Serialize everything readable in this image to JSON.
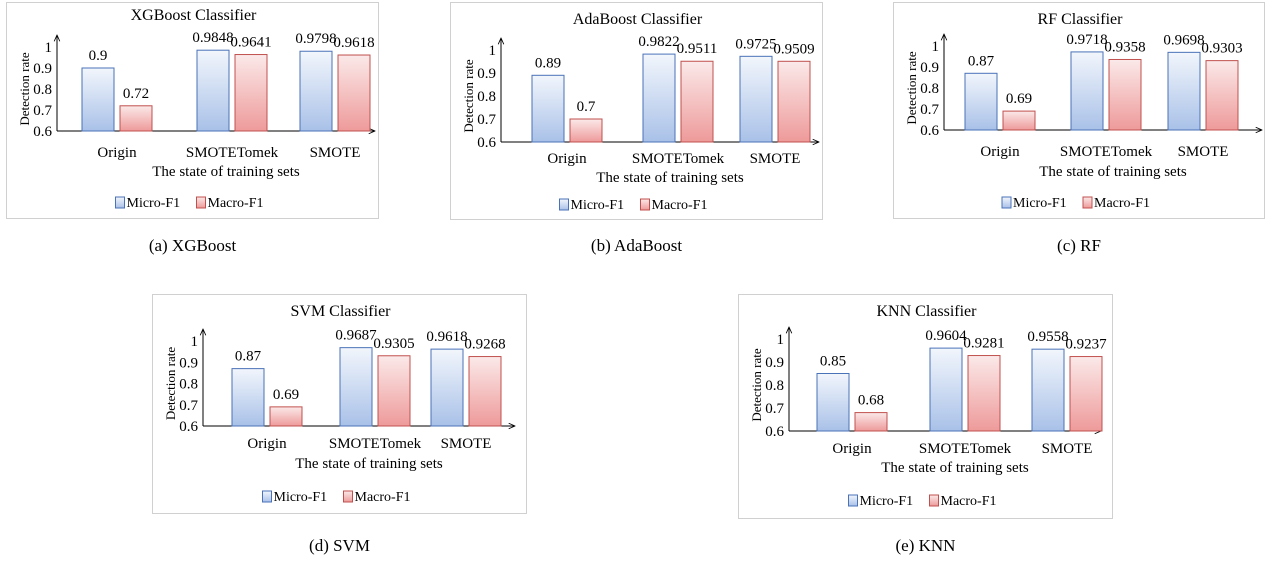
{
  "chart_data": [
    {
      "type": "bar",
      "title": "XGBoost Classifier",
      "xlabel": "The state of training sets",
      "ylabel": "Detection rate",
      "categories": [
        "Origin",
        "SMOTETomek",
        "SMOTE"
      ],
      "series": [
        {
          "name": "Micro-F1",
          "values": [
            0.9,
            0.9848,
            0.9798
          ],
          "labels": [
            "0.9",
            "0.9848",
            "0.9798"
          ]
        },
        {
          "name": "Macro-F1",
          "values": [
            0.72,
            0.9641,
            0.9618
          ],
          "labels": [
            "0.72",
            "0.9641",
            "0.9618"
          ]
        }
      ],
      "yticks": [
        "0.6",
        "0.7",
        "0.8",
        "0.9",
        "1"
      ],
      "ylim": [
        0.6,
        1.0
      ],
      "legend_position": "bottom",
      "grid": false,
      "caption": "(a) XGBoost"
    },
    {
      "type": "bar",
      "title": "AdaBoost Classifier",
      "xlabel": "The state of training sets",
      "ylabel": "Detection rate",
      "categories": [
        "Origin",
        "SMOTETomek",
        "SMOTE"
      ],
      "series": [
        {
          "name": "Micro-F1",
          "values": [
            0.89,
            0.9822,
            0.9725
          ],
          "labels": [
            "0.89",
            "0.9822",
            "0.9725"
          ]
        },
        {
          "name": "Macro-F1",
          "values": [
            0.7,
            0.9511,
            0.9509
          ],
          "labels": [
            "0.7",
            "0.9511",
            "0.9509"
          ]
        }
      ],
      "yticks": [
        "0.6",
        "0.7",
        "0.8",
        "0.9",
        "1"
      ],
      "ylim": [
        0.6,
        1.0
      ],
      "legend_position": "bottom",
      "grid": false,
      "caption": "(b) AdaBoost"
    },
    {
      "type": "bar",
      "title": "RF Classifier",
      "xlabel": "The state of training sets",
      "ylabel": "Detection rate",
      "categories": [
        "Origin",
        "SMOTETomek",
        "SMOTE"
      ],
      "series": [
        {
          "name": "Micro-F1",
          "values": [
            0.87,
            0.9718,
            0.9698
          ],
          "labels": [
            "0.87",
            "0.9718",
            "0.9698"
          ]
        },
        {
          "name": "Macro-F1",
          "values": [
            0.69,
            0.9358,
            0.9303
          ],
          "labels": [
            "0.69",
            "0.9358",
            "0.9303"
          ]
        }
      ],
      "yticks": [
        "0.6",
        "0.7",
        "0.8",
        "0.9",
        "1"
      ],
      "ylim": [
        0.6,
        1.0
      ],
      "legend_position": "bottom",
      "grid": false,
      "caption": "(c) RF"
    },
    {
      "type": "bar",
      "title": "SVM Classifier",
      "xlabel": "The state of training sets",
      "ylabel": "Detection rate",
      "categories": [
        "Origin",
        "SMOTETomek",
        "SMOTE"
      ],
      "series": [
        {
          "name": "Micro-F1",
          "values": [
            0.87,
            0.9687,
            0.9618
          ],
          "labels": [
            "0.87",
            "0.9687",
            "0.9618"
          ]
        },
        {
          "name": "Macro-F1",
          "values": [
            0.69,
            0.9305,
            0.9268
          ],
          "labels": [
            "0.69",
            "0.9305",
            "0.9268"
          ]
        }
      ],
      "yticks": [
        "0.6",
        "0.7",
        "0.8",
        "0.9",
        "1"
      ],
      "ylim": [
        0.6,
        1.0
      ],
      "legend_position": "bottom",
      "grid": false,
      "caption": "(d) SVM"
    },
    {
      "type": "bar",
      "title": "KNN Classifier",
      "xlabel": "The state of training sets",
      "ylabel": "Detection rate",
      "categories": [
        "Origin",
        "SMOTETomek",
        "SMOTE"
      ],
      "series": [
        {
          "name": "Micro-F1",
          "values": [
            0.85,
            0.9604,
            0.9558
          ],
          "labels": [
            "0.85",
            "0.9604",
            "0.9558"
          ]
        },
        {
          "name": "Macro-F1",
          "values": [
            0.68,
            0.9281,
            0.9237
          ],
          "labels": [
            "0.68",
            "0.9281",
            "0.9237"
          ]
        }
      ],
      "yticks": [
        "0.6",
        "0.7",
        "0.8",
        "0.9",
        "1"
      ],
      "ylim": [
        0.6,
        1.0
      ],
      "legend_position": "bottom",
      "grid": false,
      "caption": "(e) KNN"
    }
  ],
  "colors": {
    "micro_fill_top": "#f2f6fc",
    "micro_fill_bottom": "#a9c1e8",
    "micro_stroke": "#4a72b8",
    "macro_fill_top": "#fbe9e9",
    "macro_fill_bottom": "#ee9a9a",
    "macro_stroke": "#c0504d"
  }
}
